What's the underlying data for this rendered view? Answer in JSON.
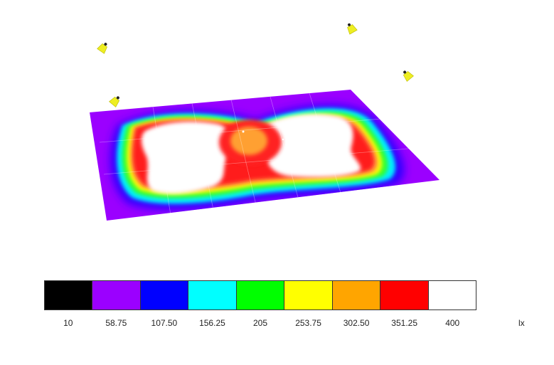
{
  "legend": {
    "unit": "lx",
    "steps": [
      {
        "value": "10",
        "color": "#000000"
      },
      {
        "value": "58.75",
        "color": "#9b00ff"
      },
      {
        "value": "107.50",
        "color": "#0000ff"
      },
      {
        "value": "156.25",
        "color": "#00ffff"
      },
      {
        "value": "205",
        "color": "#00ff00"
      },
      {
        "value": "253.75",
        "color": "#ffff00"
      },
      {
        "value": "302.50",
        "color": "#ffa500"
      },
      {
        "value": "351.25",
        "color": "#ff0000"
      },
      {
        "value": "400",
        "color": "#ffffff"
      }
    ]
  },
  "scene": {
    "luminaire_icon": "floodlight-icon",
    "luminaire_count": 4,
    "surface": "illuminance-plane"
  }
}
